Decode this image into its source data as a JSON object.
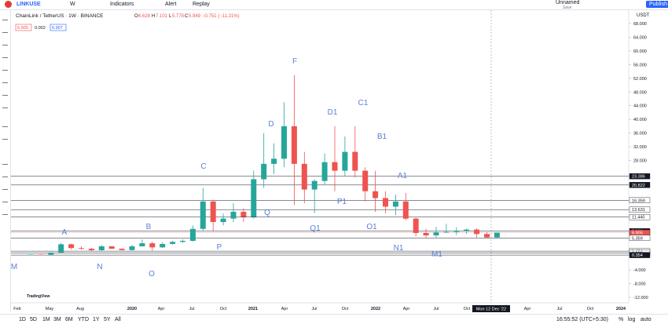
{
  "toolbar": {
    "symbol": "LINKUSE",
    "interval": "W",
    "indicators": "Indicators",
    "alert": "Alert",
    "replay": "Replay",
    "layout_name": "Unnamed",
    "layout_status": "Save",
    "publish": "Publish"
  },
  "legend": {
    "title": "ChainLink / TetherUS · 1W · BINANCE",
    "o_label": "O",
    "open": 6.628,
    "h_label": "H",
    "high": 7.101,
    "l_label": "L",
    "low": 5.778,
    "c_label": "C",
    "close": 5.949,
    "change": "−0.751 (−11.21%)",
    "bid": 6.905,
    "spread": 0.002,
    "ask": 6.907
  },
  "chart_data": {
    "type": "candlestick",
    "currency": "USDT",
    "open": [
      0.45,
      0.5,
      0.45,
      1.1,
      3.5,
      2.4,
      2.2,
      1.75,
      2.9,
      2.2,
      1.8,
      2.9,
      3.8,
      2.6,
      3.6,
      4.2,
      4.5,
      8.0,
      16.0,
      10.0,
      11.0,
      13.0,
      11.5,
      22.5,
      27.0,
      28.5,
      38.0,
      27.0,
      19.5,
      22.0,
      27.5,
      25.0,
      30.5,
      25.0,
      19.0,
      17.0,
      14.5,
      16.0,
      11.0,
      6.8,
      6.1,
      7.0,
      7.1,
      7.5,
      7.8,
      6.5,
      5.5
    ],
    "high": [
      0.55,
      0.55,
      1.2,
      3.9,
      3.7,
      2.9,
      2.4,
      3.3,
      3.0,
      2.3,
      3.4,
      4.9,
      4.3,
      4.1,
      4.5,
      4.9,
      9.0,
      20.0,
      16.5,
      12.5,
      15.5,
      14.0,
      25.0,
      36.0,
      33.0,
      45.0,
      52.9,
      30.5,
      22.5,
      30.0,
      38.0,
      35.0,
      38.0,
      26.0,
      25.0,
      19.0,
      18.0,
      18.5,
      11.5,
      8.0,
      8.6,
      9.5,
      8.5,
      8.1,
      8.2,
      7.0,
      6.95
    ],
    "low": [
      0.4,
      0.42,
      0.42,
      1.0,
      2.0,
      1.9,
      1.5,
      1.6,
      2.1,
      1.7,
      1.7,
      2.9,
      1.6,
      2.4,
      3.4,
      3.9,
      4.3,
      7.5,
      7.3,
      9.0,
      10.0,
      10.0,
      11.0,
      20.0,
      24.0,
      26.0,
      15.0,
      15.5,
      12.6,
      21.0,
      19.0,
      23.5,
      23.0,
      16.0,
      13.0,
      12.5,
      12.0,
      10.5,
      5.8,
      5.2,
      5.5,
      6.8,
      6.2,
      6.5,
      5.5,
      5.2,
      5.2
    ],
    "close": [
      0.5,
      0.45,
      1.1,
      3.5,
      2.4,
      2.2,
      1.75,
      2.9,
      2.2,
      1.8,
      2.9,
      3.8,
      2.6,
      3.6,
      4.2,
      4.5,
      8.0,
      16.0,
      10.0,
      11.0,
      13.0,
      11.5,
      22.5,
      27.0,
      28.5,
      38.0,
      27.0,
      19.5,
      22.0,
      27.5,
      25.0,
      30.5,
      25.0,
      19.0,
      17.0,
      14.5,
      16.0,
      11.0,
      6.8,
      6.1,
      7.0,
      7.1,
      7.5,
      7.8,
      6.5,
      5.5,
      6.905
    ],
    "up_color": "#26a69a",
    "down_color": "#ef5350",
    "ylim": [
      -12,
      68
    ],
    "yticks": [
      {
        "value": 68,
        "label": "68.000"
      },
      {
        "value": 64,
        "label": "64.000"
      },
      {
        "value": 60,
        "label": "60.000"
      },
      {
        "value": 56,
        "label": "56.000"
      },
      {
        "value": 52,
        "label": "52.000"
      },
      {
        "value": 48,
        "label": "48.000"
      },
      {
        "value": 44,
        "label": "44.000"
      },
      {
        "value": 40,
        "label": "40.000"
      },
      {
        "value": 36,
        "label": "36.000"
      },
      {
        "value": 32,
        "label": "32.000"
      },
      {
        "value": 28,
        "label": "28.000"
      },
      {
        "value": -4,
        "label": "-4.000"
      },
      {
        "value": -8,
        "label": "-8.000"
      },
      {
        "value": -12,
        "label": "-12.000"
      }
    ],
    "price_lines": [
      23.386,
      20.822,
      16.359,
      13.631,
      {
        "value": 11.44,
        "label": "11.440"
      },
      7.326,
      6.905,
      5.359,
      1.494,
      {
        "value": 0.99,
        "label": "0.990"
      },
      0.354
    ],
    "time_labels": [
      "Feb",
      "May",
      "Aug",
      "2020",
      "Apr",
      "Jul",
      "Oct",
      "2021",
      "Apr",
      "Jul",
      "Oct",
      "2022",
      "Apr",
      "Jul",
      "Oct",
      "Apr",
      "Jul",
      "Oct",
      "2024"
    ],
    "annotations": [
      "M",
      "N",
      "O",
      "A",
      "B",
      "P",
      "C",
      "Q",
      "D",
      "F",
      "Q1",
      "D1",
      "P1",
      "C1",
      "O1",
      "B1",
      "A1",
      "N1",
      "M1"
    ],
    "annotation_color": "#5b7fd6",
    "crosshair_label": "Mon 12 Dec '22"
  },
  "watermark": "TradingView",
  "bottom_bar": {
    "ranges": [
      "1D",
      "5D",
      "1M",
      "3M",
      "6M",
      "YTD",
      "1Y",
      "5Y",
      "All"
    ],
    "clock": "16:55:52 (UTC+5:30)",
    "percent": "%",
    "log": "log",
    "auto": "auto"
  }
}
